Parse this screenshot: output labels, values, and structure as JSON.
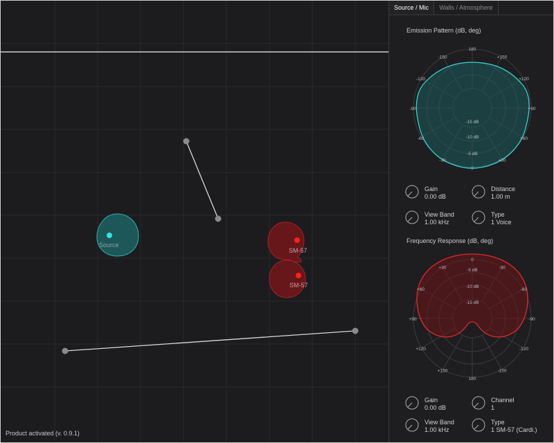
{
  "tabs": [
    {
      "label": "Source / Mic"
    },
    {
      "label": "Walls / Atmosphere"
    }
  ],
  "canvas": {
    "source_label": "Source",
    "mic1_label": "SM-57",
    "mic2_label": "SM-57",
    "colors": {
      "source": "#2ee6e0",
      "mic": "#ff2b2b",
      "wall": "#d9d9d9",
      "grid": "#2a2a2d"
    }
  },
  "emission": {
    "title": "Emission Pattern (dB, deg)",
    "angle_labels": [
      "180",
      "+150",
      "+120",
      "+90",
      "+60",
      "+30",
      "0",
      "-30",
      "-60",
      "-90",
      "-120",
      "-150"
    ],
    "db_labels": [
      "-15 dB",
      "-10 dB",
      "-5 dB"
    ],
    "controls": [
      {
        "label": "Gain",
        "value": "0.00 dB",
        "icon": "knob-icon"
      },
      {
        "label": "Distance",
        "value": "1.00 m",
        "icon": "knob-icon"
      },
      {
        "label": "View Band",
        "value": "1.00 kHz",
        "icon": "knob-icon"
      },
      {
        "label": "Type",
        "value": "1 Voice",
        "icon": "knob-icon"
      }
    ]
  },
  "frequency": {
    "title": "Frequency Response (dB, deg)",
    "angle_labels": [
      "0",
      "-30",
      "-60",
      "-90",
      "-120",
      "-150",
      "180",
      "+150",
      "+120",
      "+90",
      "+60",
      "+30"
    ],
    "db_labels": [
      "-5 dB",
      "-10 dB",
      "-15 dB"
    ],
    "controls": [
      {
        "label": "Gain",
        "value": "0.00 dB",
        "icon": "knob-icon"
      },
      {
        "label": "Channel",
        "value": "1",
        "icon": "knob-icon"
      },
      {
        "label": "View Band",
        "value": "1.00 kHz",
        "icon": "knob-icon"
      },
      {
        "label": "Type",
        "value": "1 SM-57 (Cardi.)",
        "icon": "knob-icon"
      }
    ]
  },
  "status": "Product activated (v. 0.9.1)"
}
